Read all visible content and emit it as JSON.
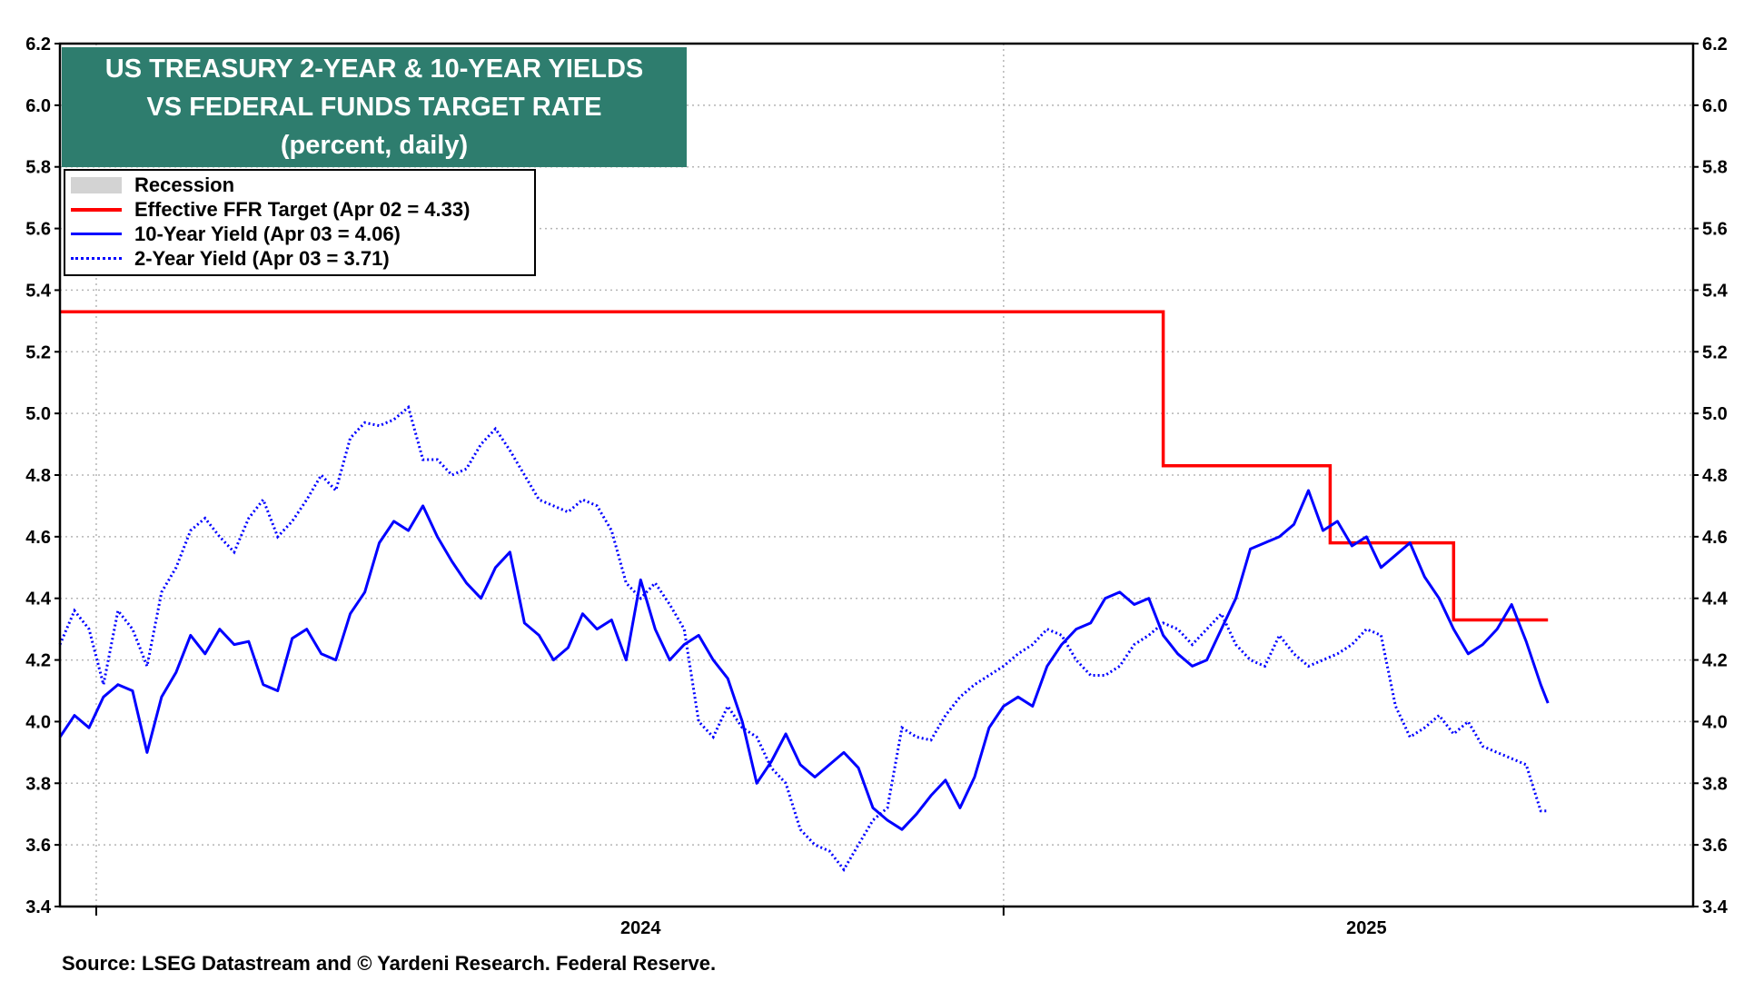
{
  "title": {
    "line1": "US TREASURY 2-YEAR & 10-YEAR YIELDS",
    "line2": "VS FEDERAL FUNDS TARGET RATE",
    "line3": "(percent, daily)"
  },
  "legend": {
    "recession": "Recession",
    "ffr": "Effective FFR Target (Apr 02 = 4.33)",
    "ten_year": "10-Year Yield (Apr 03 = 4.06)",
    "two_year": "2-Year Yield (Apr 03 = 3.71)"
  },
  "source": "Source: LSEG Datastream and © Yardeni Research. Federal Reserve.",
  "colors": {
    "ffr": "#ff0000",
    "yields": "#0000ff",
    "title_bg": "#2e7d6e",
    "recession": "#d3d3d3"
  },
  "chart_data": {
    "type": "line",
    "title": "US TREASURY 2-YEAR & 10-YEAR YIELDS VS FEDERAL FUNDS TARGET RATE (percent, daily)",
    "ylabel": "percent",
    "ylim": [
      3.4,
      6.2
    ],
    "yticks": [
      "6.2",
      "6.0",
      "5.8",
      "5.6",
      "5.4",
      "5.2",
      "5.0",
      "4.8",
      "4.6",
      "4.4",
      "4.2",
      "4.0",
      "3.8",
      "3.6",
      "3.4"
    ],
    "x_unit": "year (decimal)",
    "xlim": [
      2023.2,
      2025.45
    ],
    "x_labels": [
      {
        "label": "2024",
        "x": 2024.0
      },
      {
        "label": "2025",
        "x": 2025.0
      }
    ],
    "vertical_gridlines_at": [
      2023.25,
      2024.5
    ],
    "legend_position": "top-left",
    "series": [
      {
        "name": "Effective FFR Target (Apr 02 = 4.33)",
        "style": "solid-red",
        "x": [
          2023.2,
          2024.72,
          2024.72,
          2024.95,
          2024.95,
          2025.12,
          2025.12,
          2025.25
        ],
        "values": [
          5.33,
          5.33,
          4.83,
          4.83,
          4.58,
          4.58,
          4.33,
          4.33
        ]
      },
      {
        "name": "10-Year Yield (Apr 03 = 4.06)",
        "style": "solid-blue",
        "x": [
          2023.2,
          2023.22,
          2023.24,
          2023.26,
          2023.28,
          2023.3,
          2023.32,
          2023.34,
          2023.36,
          2023.38,
          2023.4,
          2023.42,
          2023.44,
          2023.46,
          2023.48,
          2023.5,
          2023.52,
          2023.54,
          2023.56,
          2023.58,
          2023.6,
          2023.62,
          2023.64,
          2023.66,
          2023.68,
          2023.7,
          2023.72,
          2023.74,
          2023.76,
          2023.78,
          2023.8,
          2023.82,
          2023.84,
          2023.86,
          2023.88,
          2023.9,
          2023.92,
          2023.94,
          2023.96,
          2023.98,
          2024.0,
          2024.02,
          2024.04,
          2024.06,
          2024.08,
          2024.1,
          2024.12,
          2024.14,
          2024.16,
          2024.18,
          2024.2,
          2024.22,
          2024.24,
          2024.26,
          2024.28,
          2024.3,
          2024.32,
          2024.34,
          2024.36,
          2024.38,
          2024.4,
          2024.42,
          2024.44,
          2024.46,
          2024.48,
          2024.5,
          2024.52,
          2024.54,
          2024.56,
          2024.58,
          2024.6,
          2024.62,
          2024.64,
          2024.66,
          2024.68,
          2024.7,
          2024.72,
          2024.74,
          2024.76,
          2024.78,
          2024.8,
          2024.82,
          2024.84,
          2024.86,
          2024.88,
          2024.9,
          2024.92,
          2024.94,
          2024.96,
          2024.98,
          2025.0,
          2025.02,
          2025.04,
          2025.06,
          2025.08,
          2025.1,
          2025.12,
          2025.14,
          2025.16,
          2025.18,
          2025.2,
          2025.22,
          2025.24,
          2025.25
        ],
        "values": [
          3.95,
          4.02,
          3.98,
          4.08,
          4.12,
          4.1,
          3.9,
          4.08,
          4.16,
          4.28,
          4.22,
          4.3,
          4.25,
          4.26,
          4.12,
          4.1,
          4.27,
          4.3,
          4.22,
          4.2,
          4.35,
          4.42,
          4.58,
          4.65,
          4.62,
          4.7,
          4.6,
          4.52,
          4.45,
          4.4,
          4.5,
          4.55,
          4.32,
          4.28,
          4.2,
          4.24,
          4.35,
          4.3,
          4.33,
          4.2,
          4.46,
          4.3,
          4.2,
          4.25,
          4.28,
          4.2,
          4.14,
          4.0,
          3.8,
          3.87,
          3.96,
          3.86,
          3.82,
          3.86,
          3.9,
          3.85,
          3.72,
          3.68,
          3.65,
          3.7,
          3.76,
          3.81,
          3.72,
          3.82,
          3.98,
          4.05,
          4.08,
          4.05,
          4.18,
          4.25,
          4.3,
          4.32,
          4.4,
          4.42,
          4.38,
          4.4,
          4.28,
          4.22,
          4.18,
          4.2,
          4.3,
          4.4,
          4.56,
          4.58,
          4.6,
          4.64,
          4.75,
          4.62,
          4.65,
          4.57,
          4.6,
          4.5,
          4.54,
          4.58,
          4.47,
          4.4,
          4.3,
          4.22,
          4.25,
          4.3,
          4.38,
          4.26,
          4.12,
          4.06
        ]
      },
      {
        "name": "2-Year Yield (Apr 03 = 3.71)",
        "style": "dotted-blue",
        "x": [
          2023.2,
          2023.22,
          2023.24,
          2023.26,
          2023.28,
          2023.3,
          2023.32,
          2023.34,
          2023.36,
          2023.38,
          2023.4,
          2023.42,
          2023.44,
          2023.46,
          2023.48,
          2023.5,
          2023.52,
          2023.54,
          2023.56,
          2023.58,
          2023.6,
          2023.62,
          2023.64,
          2023.66,
          2023.68,
          2023.7,
          2023.72,
          2023.74,
          2023.76,
          2023.78,
          2023.8,
          2023.82,
          2023.84,
          2023.86,
          2023.88,
          2023.9,
          2023.92,
          2023.94,
          2023.96,
          2023.98,
          2024.0,
          2024.02,
          2024.04,
          2024.06,
          2024.08,
          2024.1,
          2024.12,
          2024.14,
          2024.16,
          2024.18,
          2024.2,
          2024.22,
          2024.24,
          2024.26,
          2024.28,
          2024.3,
          2024.32,
          2024.34,
          2024.36,
          2024.38,
          2024.4,
          2024.42,
          2024.44,
          2024.46,
          2024.48,
          2024.5,
          2024.52,
          2024.54,
          2024.56,
          2024.58,
          2024.6,
          2024.62,
          2024.64,
          2024.66,
          2024.68,
          2024.7,
          2024.72,
          2024.74,
          2024.76,
          2024.78,
          2024.8,
          2024.82,
          2024.84,
          2024.86,
          2024.88,
          2024.9,
          2024.92,
          2024.94,
          2024.96,
          2024.98,
          2025.0,
          2025.02,
          2025.04,
          2025.06,
          2025.08,
          2025.1,
          2025.12,
          2025.14,
          2025.16,
          2025.18,
          2025.2,
          2025.22,
          2025.24,
          2025.25
        ],
        "values": [
          4.25,
          4.36,
          4.3,
          4.12,
          4.36,
          4.3,
          4.18,
          4.42,
          4.5,
          4.62,
          4.66,
          4.6,
          4.55,
          4.66,
          4.72,
          4.6,
          4.65,
          4.72,
          4.8,
          4.75,
          4.92,
          4.97,
          4.96,
          4.98,
          5.02,
          4.85,
          4.85,
          4.8,
          4.82,
          4.9,
          4.95,
          4.88,
          4.8,
          4.72,
          4.7,
          4.68,
          4.72,
          4.7,
          4.62,
          4.45,
          4.4,
          4.45,
          4.38,
          4.3,
          4.0,
          3.95,
          4.05,
          3.98,
          3.95,
          3.85,
          3.8,
          3.65,
          3.6,
          3.58,
          3.52,
          3.6,
          3.68,
          3.72,
          3.98,
          3.95,
          3.94,
          4.02,
          4.08,
          4.12,
          4.15,
          4.18,
          4.22,
          4.25,
          4.3,
          4.28,
          4.2,
          4.15,
          4.15,
          4.18,
          4.25,
          4.28,
          4.32,
          4.3,
          4.25,
          4.3,
          4.35,
          4.25,
          4.2,
          4.18,
          4.28,
          4.22,
          4.18,
          4.2,
          4.22,
          4.25,
          4.3,
          4.28,
          4.05,
          3.95,
          3.98,
          4.02,
          3.96,
          4.0,
          3.92,
          3.9,
          3.88,
          3.86,
          3.71,
          3.71
        ]
      }
    ]
  }
}
